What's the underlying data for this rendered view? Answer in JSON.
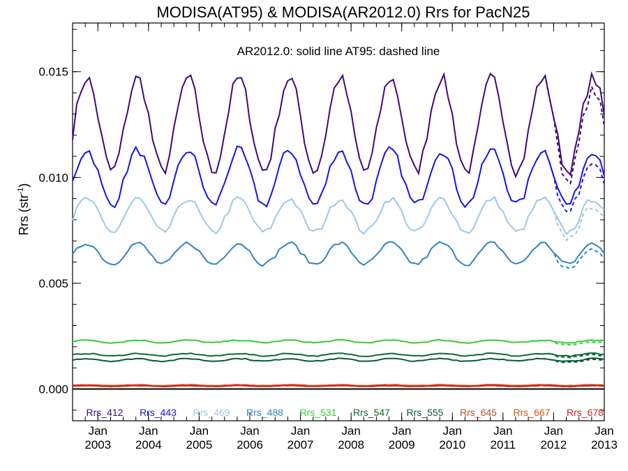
{
  "chart_data": {
    "type": "line",
    "title": "MODISA(AT95) & MODISA(AR2012.0)  Rrs for PacN25",
    "annotation": "AR2012.0: solid line   AT95: dashed line",
    "ylabel": "Rrs (str",
    "ylabel_sup": "-1",
    "ylabel_close": ")",
    "xlim": [
      2002.5,
      2013.0
    ],
    "ylim": [
      -0.0015,
      0.0173
    ],
    "yticks": [
      0.0,
      0.005,
      0.01,
      0.015
    ],
    "ytick_labels": [
      "0.000",
      "0.005",
      "0.010",
      "0.015"
    ],
    "xticks": [
      {
        "x": 2003,
        "month": "Jan",
        "year": "2003"
      },
      {
        "x": 2004,
        "month": "Jan",
        "year": "2004"
      },
      {
        "x": 2005,
        "month": "Jan",
        "year": "2005"
      },
      {
        "x": 2006,
        "month": "Jan",
        "year": "2006"
      },
      {
        "x": 2007,
        "month": "Jan",
        "year": "2007"
      },
      {
        "x": 2008,
        "month": "Jan",
        "year": "2008"
      },
      {
        "x": 2009,
        "month": "Jan",
        "year": "2009"
      },
      {
        "x": 2010,
        "month": "Jan",
        "year": "2010"
      },
      {
        "x": 2011,
        "month": "Jan",
        "year": "2011"
      },
      {
        "x": 2012,
        "month": "Jan",
        "year": "2012"
      },
      {
        "x": 2013,
        "month": "Jan",
        "year": "2013"
      }
    ],
    "grid": false,
    "legend_position": "bottom",
    "series": [
      {
        "name": "Rrs_412",
        "color": "#3d0a78",
        "ampl": 0.0022,
        "mean": 0.0125,
        "noise": 0.0006
      },
      {
        "name": "Rrs_443",
        "color": "#1414e6",
        "ampl": 0.0013,
        "mean": 0.01,
        "noise": 0.0004
      },
      {
        "name": "Rrs_469",
        "color": "#9fc8e2",
        "ampl": 0.0008,
        "mean": 0.0082,
        "noise": 0.0003
      },
      {
        "name": "Rrs_488",
        "color": "#2e86c1",
        "ampl": 0.0005,
        "mean": 0.0064,
        "noise": 0.0002
      },
      {
        "name": "Rrs_531",
        "color": "#32cd32",
        "ampl": 6e-05,
        "mean": 0.00225,
        "noise": 5e-05
      },
      {
        "name": "Rrs_547",
        "color": "#0b6a2e",
        "ampl": 6e-05,
        "mean": 0.00162,
        "noise": 5e-05
      },
      {
        "name": "Rrs_555",
        "color": "#0b5a36",
        "ampl": 6e-05,
        "mean": 0.00138,
        "noise": 5e-05
      },
      {
        "name": "Rrs_645",
        "color": "#b4522a",
        "ampl": 2e-05,
        "mean": 0.00018,
        "noise": 2e-05
      },
      {
        "name": "Rrs_667",
        "color": "#d2570f",
        "ampl": 2e-05,
        "mean": 0.00016,
        "noise": 2e-05
      },
      {
        "name": "Rrs_678",
        "color": "#cc2222",
        "ampl": 2e-05,
        "mean": 0.00014,
        "noise": 2e-05
      }
    ],
    "dashed_series_from": 2011.6,
    "zero_line": 0.0
  }
}
